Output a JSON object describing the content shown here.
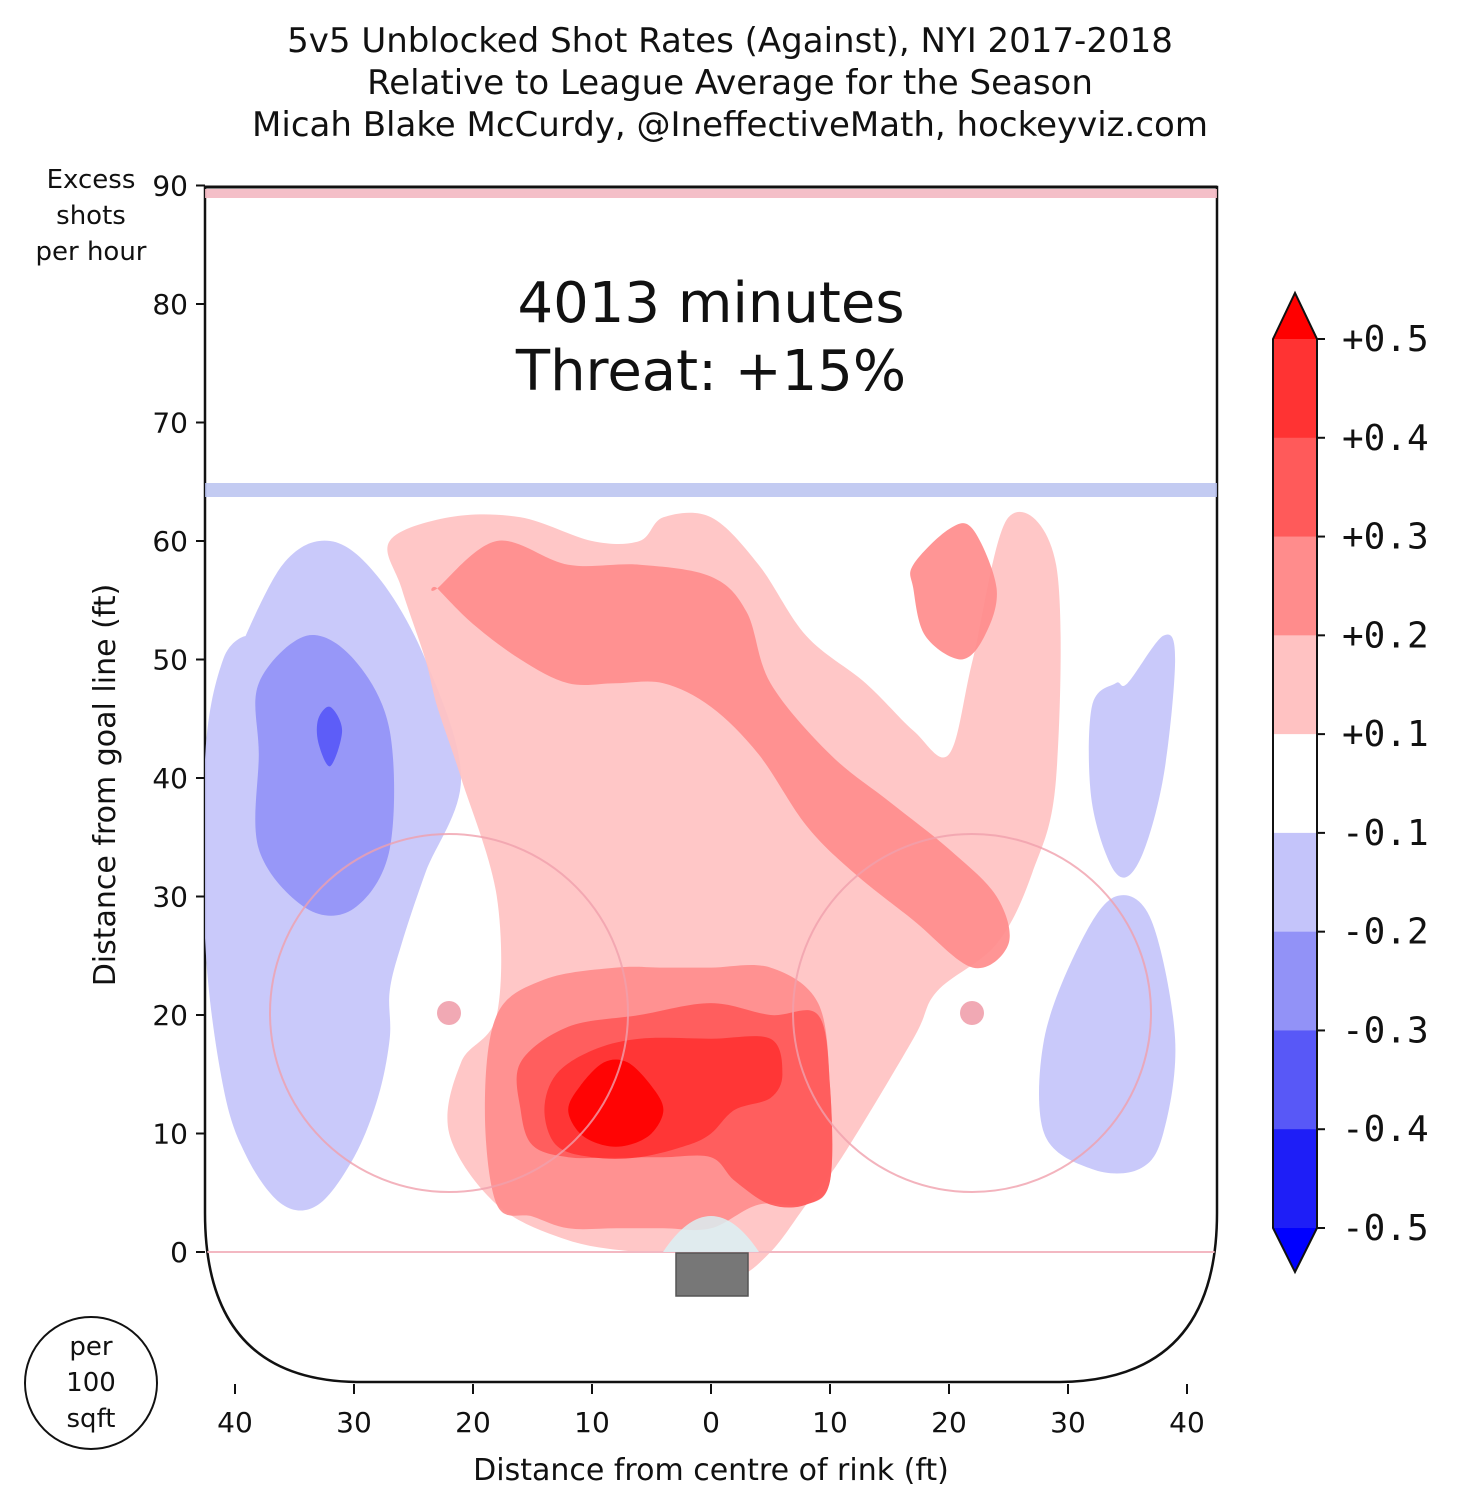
{
  "chart_data": {
    "type": "heatmap",
    "title_lines": [
      "5v5 Unblocked Shot Rates (Against), NYI 2017-2018",
      "Relative to League Average for the Season",
      "Micah Blake McCurdy, @IneffectiveMath, hockeyviz.com"
    ],
    "xlabel": "Distance from centre of rink (ft)",
    "ylabel": "Distance from goal line (ft)",
    "x_ticks": [
      "40",
      "30",
      "20",
      "10",
      "0",
      "10",
      "20",
      "30",
      "40"
    ],
    "x_tick_values": [
      -40,
      -30,
      -20,
      -10,
      0,
      10,
      20,
      30,
      40
    ],
    "y_ticks": [
      "0",
      "10",
      "20",
      "30",
      "40",
      "50",
      "60",
      "70",
      "80",
      "90"
    ],
    "y_tick_values": [
      0,
      10,
      20,
      30,
      40,
      50,
      60,
      70,
      80,
      90
    ],
    "xlim": [
      -42.5,
      42.5
    ],
    "ylim": [
      -11,
      89
    ],
    "annotation": {
      "minutes": "4013 minutes",
      "threat": "Threat: +15%"
    },
    "colorbar": {
      "labels": [
        "+0.5",
        "+0.4",
        "+0.3",
        "+0.2",
        "+0.1",
        "-0.1",
        "-0.2",
        "-0.3",
        "-0.4",
        "-0.5"
      ],
      "levels": [
        0.5,
        0.4,
        0.3,
        0.2,
        0.1,
        -0.1,
        -0.2,
        -0.3,
        -0.4,
        -0.5
      ],
      "colors": [
        "#ff0000",
        "#ff3333",
        "#ff5a5a",
        "#ff8c8c",
        "#ffc2c2",
        "#ffffff",
        "#c4c4fa",
        "#9292f7",
        "#5858f7",
        "#1e1ef7",
        "#0000ff"
      ]
    },
    "regions": [
      {
        "level": -0.1,
        "x": [
          -40,
          -36,
          -32,
          -28,
          -24,
          -21,
          -24,
          -26,
          -27,
          -27,
          -28,
          -30,
          -33,
          -36,
          -39,
          -41,
          -42.5,
          -42.5,
          -41,
          -39
        ],
        "y": [
          50,
          58,
          60,
          57,
          50,
          40,
          32,
          26,
          22,
          18,
          13,
          8,
          4,
          4,
          8,
          14,
          26,
          42,
          50,
          52
        ]
      },
      {
        "level": -0.1,
        "x": [
          35,
          38,
          39,
          38,
          36,
          34,
          32,
          32,
          34
        ],
        "y": [
          48,
          52,
          50,
          40,
          33,
          32,
          38,
          46,
          48
        ]
      },
      {
        "level": -0.1,
        "x": [
          34,
          37,
          39,
          38,
          36,
          32,
          28,
          28,
          31
        ],
        "y": [
          30,
          28,
          18,
          10,
          7,
          7,
          10,
          18,
          26
        ]
      },
      {
        "level": -0.2,
        "x": [
          -38,
          -34,
          -30,
          -27,
          -27,
          -30,
          -34,
          -38,
          -38
        ],
        "y": [
          48,
          52,
          50,
          44,
          34,
          29,
          29,
          34,
          42
        ]
      },
      {
        "level": -0.3,
        "x": [
          -33,
          -32,
          -31,
          -32,
          -33
        ],
        "y": [
          45,
          46,
          44,
          41,
          43
        ]
      },
      {
        "level": 0.1,
        "x": [
          -27,
          -22,
          -16,
          -10,
          -6,
          -4,
          0,
          4,
          8,
          13,
          17,
          20,
          22,
          25,
          29,
          29,
          27,
          24,
          19,
          17,
          11,
          8,
          5,
          2,
          -2,
          -6,
          -12,
          -18,
          -22,
          -21,
          -18,
          -18,
          -21,
          -23,
          -24,
          -26
        ],
        "y": [
          60,
          62,
          62,
          60,
          60,
          62,
          62,
          58,
          52,
          48,
          44,
          42,
          50,
          62,
          58,
          40,
          32,
          26,
          22,
          18,
          8,
          4,
          0,
          -2,
          0,
          0,
          1,
          4,
          10,
          16,
          20,
          30,
          40,
          46,
          50,
          56
        ]
      },
      {
        "level": 0.2,
        "x": [
          -23,
          -18,
          -12,
          -6,
          0,
          3,
          5,
          10,
          15,
          20,
          24,
          25,
          22,
          17,
          12,
          8,
          4,
          0,
          -4,
          -8,
          -12,
          -16,
          -20,
          -23
        ],
        "y": [
          56,
          60,
          58,
          58,
          57,
          54,
          48,
          42,
          38,
          34,
          30,
          26,
          24,
          28,
          32,
          36,
          42,
          46,
          48,
          48,
          48,
          50,
          53,
          56
        ]
      },
      {
        "level": 0.2,
        "x": [
          -18,
          -14,
          -8,
          -4,
          0,
          5,
          9,
          10,
          10,
          8,
          4,
          0,
          -4,
          -8,
          -12,
          -15,
          -18,
          -19
        ],
        "y": [
          20,
          23,
          24,
          24,
          24,
          24,
          21,
          14,
          6,
          4,
          4,
          2,
          2,
          2,
          2,
          3,
          4,
          12
        ]
      },
      {
        "level": 0.2,
        "x": [
          17,
          20,
          22,
          24,
          23,
          21,
          18,
          17
        ],
        "y": [
          58,
          61,
          61,
          56,
          52,
          50,
          52,
          56
        ]
      },
      {
        "level": 0.3,
        "x": [
          -16,
          -12,
          -6,
          0,
          5,
          9,
          10,
          10,
          8,
          5,
          2,
          0,
          -4,
          -8,
          -12,
          -15,
          -16
        ],
        "y": [
          16,
          19,
          20,
          21,
          20,
          20,
          14,
          6,
          4,
          4,
          6,
          8,
          8,
          8,
          8,
          9,
          12
        ]
      },
      {
        "level": 0.4,
        "x": [
          -13,
          -10,
          -6,
          0,
          5,
          6,
          5,
          2,
          0,
          -2,
          -6,
          -10,
          -13,
          -14
        ],
        "y": [
          15,
          17,
          18,
          18,
          18,
          15,
          13,
          12,
          10,
          9,
          8,
          8,
          9,
          12
        ]
      },
      {
        "level": 0.5,
        "x": [
          -11,
          -9,
          -7,
          -5,
          -4,
          -5,
          -7,
          -9,
          -11,
          -12
        ],
        "y": [
          14,
          16,
          16,
          14,
          12,
          10,
          9,
          9,
          10,
          12
        ]
      }
    ]
  }
}
